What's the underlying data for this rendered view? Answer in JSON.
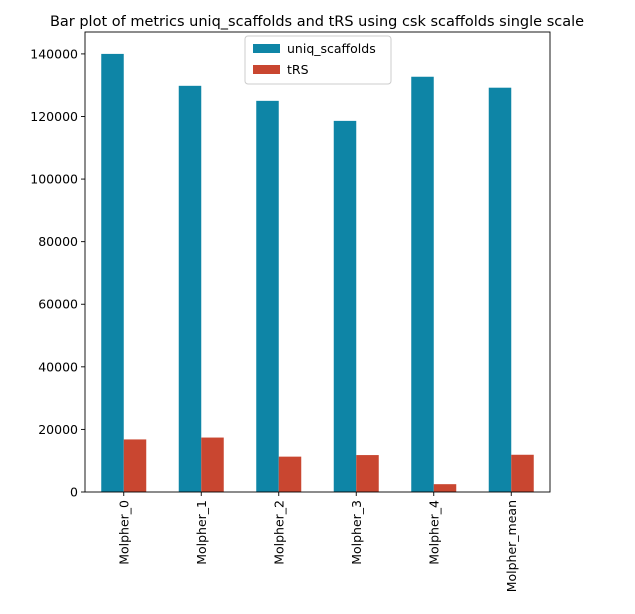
{
  "chart_data": {
    "type": "bar",
    "title": "Bar plot of metrics uniq_scaffolds and tRS using csk scaffolds single scale",
    "xlabel": "",
    "ylabel": "",
    "categories": [
      "Molpher_0",
      "Molpher_1",
      "Molpher_2",
      "Molpher_3",
      "Molpher_4",
      "Molpher_mean"
    ],
    "series": [
      {
        "name": "uniq_scaffolds",
        "color": "#0e85a6",
        "values": [
          140000,
          129800,
          125000,
          118600,
          132700,
          129200
        ]
      },
      {
        "name": "tRS",
        "color": "#c94630",
        "values": [
          16800,
          17400,
          11300,
          11800,
          2500,
          11900
        ]
      }
    ],
    "ylim": [
      0,
      147000
    ],
    "yticks": [
      0,
      20000,
      40000,
      60000,
      80000,
      100000,
      120000,
      140000
    ],
    "ytick_labels": [
      "0",
      "20000",
      "40000",
      "60000",
      "80000",
      "100000",
      "120000",
      "140000"
    ],
    "grid": false,
    "legend_position": "upper-center"
  }
}
